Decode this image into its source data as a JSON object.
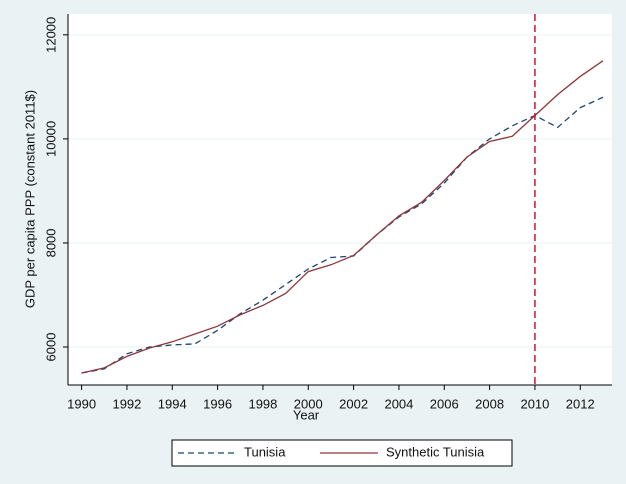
{
  "chart_data": {
    "type": "line",
    "x": [
      1990,
      1991,
      1992,
      1993,
      1994,
      1995,
      1996,
      1997,
      1998,
      1999,
      2000,
      2001,
      2002,
      2003,
      2004,
      2005,
      2006,
      2007,
      2008,
      2009,
      2010,
      2011,
      2012,
      2013
    ],
    "series": [
      {
        "name": "Tunisia",
        "color": "#1a476f",
        "dash": true,
        "values": [
          5500,
          5580,
          5870,
          6000,
          6040,
          6060,
          6320,
          6640,
          6900,
          7200,
          7500,
          7720,
          7750,
          8150,
          8500,
          8750,
          9150,
          9650,
          10000,
          10250,
          10450,
          10220,
          10600,
          10800
        ]
      },
      {
        "name": "Synthetic Tunisia",
        "color": "#90353b",
        "dash": false,
        "values": [
          5500,
          5600,
          5820,
          5980,
          6100,
          6250,
          6400,
          6620,
          6800,
          7030,
          7450,
          7580,
          7760,
          8150,
          8520,
          8780,
          9200,
          9650,
          9950,
          10050,
          10450,
          10850,
          11200,
          11500
        ]
      }
    ],
    "xlabel": "Year",
    "ylabel": "GDP per capita PPP (constant 2011$)",
    "xlim": [
      1989.4,
      2013.4
    ],
    "xticks": [
      1990,
      1992,
      1994,
      1996,
      1998,
      2000,
      2002,
      2004,
      2006,
      2008,
      2010,
      2012
    ],
    "ylim": [
      5270,
      12400
    ],
    "yticks": [
      6000,
      8000,
      10000,
      12000
    ],
    "grid": true,
    "legend": "bottom",
    "vline": {
      "x": 2010,
      "color": "#d0142c"
    }
  }
}
